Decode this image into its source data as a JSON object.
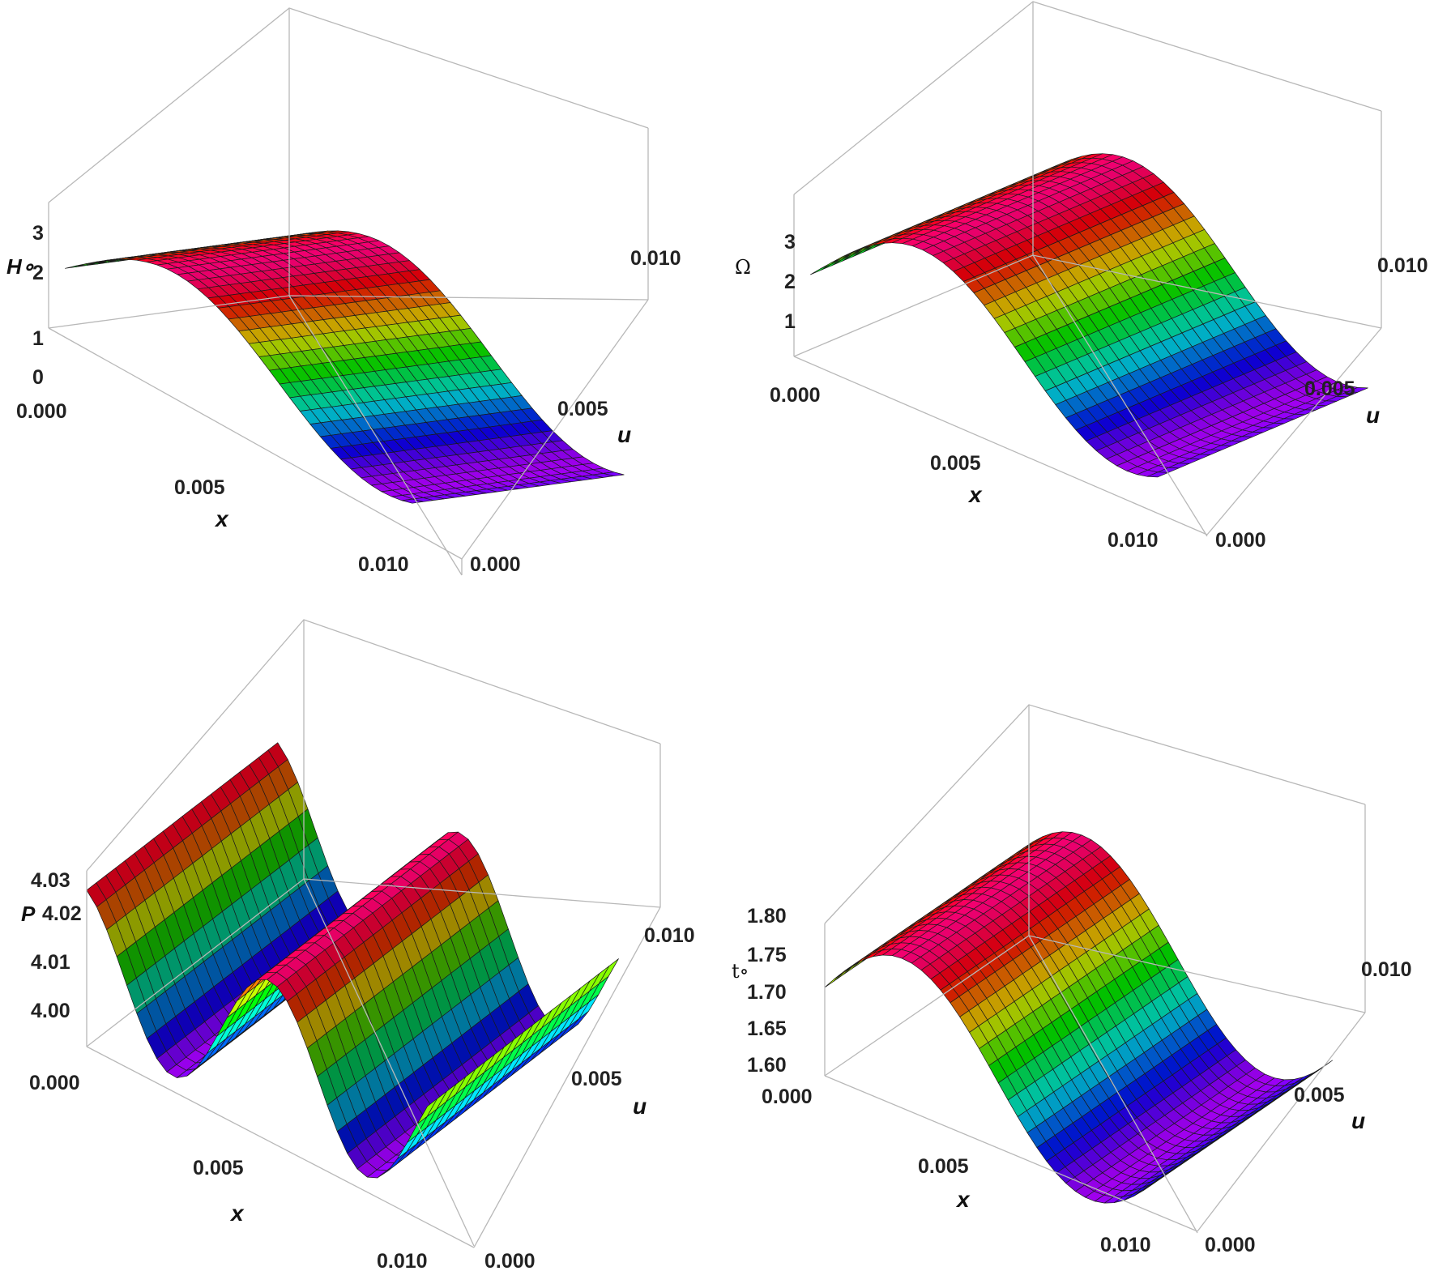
{
  "chart_data": [
    {
      "type": "surface3d",
      "xlabel": "x",
      "ylabel": "u",
      "zlabel": "H∘",
      "x_ticks": [
        "0.000",
        "0.005",
        "0.010"
      ],
      "u_ticks": [
        "0.000",
        "0.005",
        "0.010"
      ],
      "z_ticks": [
        "0",
        "1",
        "2",
        "3"
      ],
      "xlim": [
        0,
        0.0125
      ],
      "ulim": [
        0,
        0.0125
      ],
      "zlim": [
        -0.3,
        3.6
      ],
      "surface": {
        "function": "H(x) = offset + amplitude*sin(2*pi*x/period + phase), constant in u",
        "offset": 2.0,
        "amplitude": 1.6,
        "period": 0.0125,
        "phase": -0.35,
        "x_start": 0.0005
      },
      "colormap": "hue",
      "shading": "lighting"
    },
    {
      "type": "surface3d",
      "xlabel": "x",
      "ylabel": "u",
      "zlabel": "Ω",
      "x_ticks": [
        "0.000",
        "0.005",
        "0.010"
      ],
      "u_ticks": [
        "0.000",
        "0.005",
        "0.010"
      ],
      "z_ticks": [
        "1",
        "2",
        "3"
      ],
      "xlim": [
        0,
        0.0125
      ],
      "ulim": [
        0,
        0.0125
      ],
      "zlim": [
        -0.3,
        3.6
      ],
      "surface": {
        "function": "Omega(x) = offset + amplitude*sin(2*pi*x/period + phase), constant in u",
        "offset": 2.0,
        "amplitude": 1.6,
        "period": 0.0125,
        "phase": -0.35,
        "x_start": 0.0005
      },
      "colormap": "hue",
      "shading": "lighting"
    },
    {
      "type": "surface3d",
      "xlabel": "x",
      "ylabel": "u",
      "zlabel": "P",
      "x_ticks": [
        "0.000",
        "0.005",
        "0.010"
      ],
      "u_ticks": [
        "0.000",
        "0.005",
        "0.010"
      ],
      "z_ticks": [
        "4.00",
        "4.01",
        "4.02",
        "4.03"
      ],
      "xlim": [
        0,
        0.0125
      ],
      "ulim": [
        0,
        0.0125
      ],
      "zlim": [
        3.993,
        4.04
      ],
      "surface": {
        "function": "P(x) = offset + amplitude*cos(2*pi*x/period + phase), constant in u",
        "offset": 4.0165,
        "amplitude": 0.0195,
        "period": 0.00625,
        "phase": 0.35,
        "x_start": 0.0
      },
      "colormap": "hue",
      "shading": "lighting"
    },
    {
      "type": "surface3d",
      "xlabel": "x",
      "ylabel": "u",
      "zlabel": "t∘",
      "x_ticks": [
        "0.000",
        "0.005",
        "0.010"
      ],
      "u_ticks": [
        "0.000",
        "0.005",
        "0.010"
      ],
      "z_ticks": [
        "1.60",
        "1.65",
        "1.70",
        "1.75",
        "1.80"
      ],
      "xlim": [
        0,
        0.0125
      ],
      "ulim": [
        0,
        0.0125
      ],
      "zlim": [
        1.57,
        1.86
      ],
      "surface": {
        "function": "t(x) = offset + amplitude*sin(2*pi*x/period + phase), constant in u",
        "offset": 1.7,
        "amplitude": 0.155,
        "period": 0.0125,
        "phase": 0.25,
        "x_start": 0.0
      },
      "colormap": "hue",
      "shading": "lighting"
    }
  ]
}
